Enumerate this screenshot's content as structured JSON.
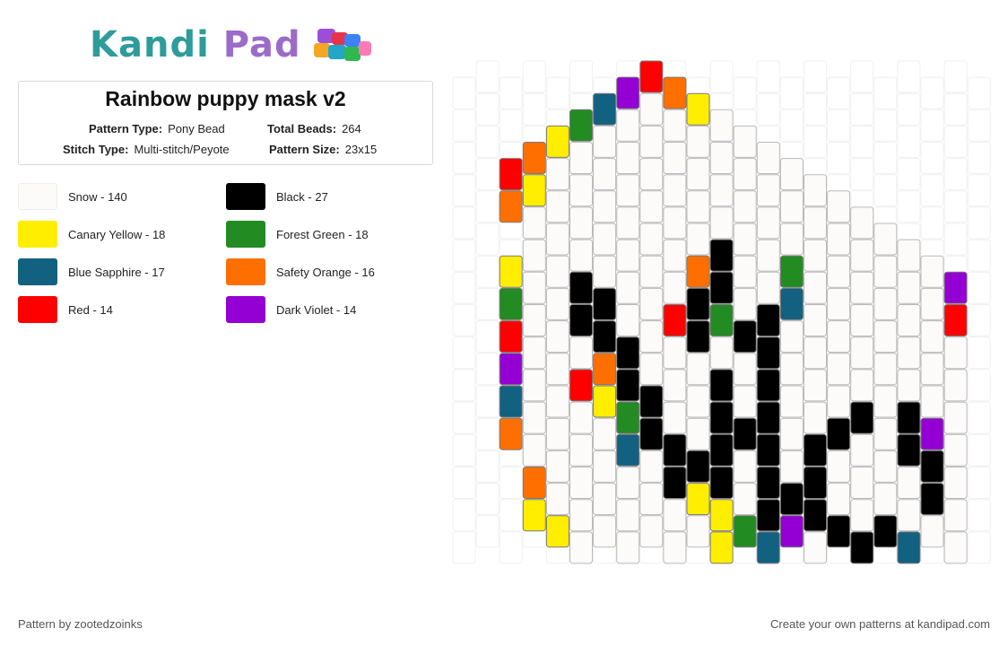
{
  "logo": {
    "part1": "Kandi",
    "part2": "Pad"
  },
  "pattern": {
    "title": "Rainbow puppy mask v2",
    "pattern_type_label": "Pattern Type:",
    "pattern_type": "Pony Bead",
    "total_beads_label": "Total Beads:",
    "total_beads": "264",
    "stitch_type_label": "Stitch Type:",
    "stitch_type": "Multi-stitch/Peyote",
    "pattern_size_label": "Pattern Size:",
    "pattern_size": "23x15"
  },
  "legend": [
    {
      "label": "Snow - 140",
      "color": "#fdfafa",
      "key": "W"
    },
    {
      "label": "Black - 27",
      "color": "#000000",
      "key": "K"
    },
    {
      "label": "Canary Yellow - 18",
      "color": "#ffee00",
      "key": "Y"
    },
    {
      "label": "Forest Green - 18",
      "color": "#228b22",
      "key": "G"
    },
    {
      "label": "Blue Sapphire - 17",
      "color": "#126180",
      "key": "B"
    },
    {
      "label": "Safety Orange - 16",
      "color": "#ff6f00",
      "key": "O"
    },
    {
      "label": "Red - 14",
      "color": "#ff0000",
      "key": "R"
    },
    {
      "label": "Dark Violet - 14",
      "color": "#9400d3",
      "key": "V"
    }
  ],
  "grid": {
    "columns": 23,
    "column_offsets": [
      8,
      7,
      6,
      5,
      4,
      3,
      2,
      1,
      0,
      1,
      2,
      3,
      4,
      5,
      6,
      7,
      8,
      9,
      10,
      11,
      12,
      13,
      14
    ],
    "columns_data": [
      "",
      "",
      "RO YGRVBO",
      "OYWWWWWWWWOY",
      "YWWWWWWWWWWWYG",
      "GWWWWKKWRWWWWWGB",
      "BWWWWWKKOYWWWWWWBV",
      "VWWWWWWWKKGBWWWWWWVR",
      "RWWWWWWWWWKKWWWWWWWWRO",
      "OWWWWWWRWWWKKWWWWWOWWOY",
      "YWWWWOKKWWWKYWWWWWOYRW",
      "WWWWKKGWKKKKYYRWWWWWW",
      "WWWWWWKWWKWWGBBGRRWWWW",
      "WWWWWKKKKKKKBBGYYOOWWWW",
      "WWWGBWWWWWKVBBYGYOWWWW",
      "WWWWWWWWKKKWVBGWWYWWWWW",
      "WWWWWWWKWWKKWBWGYWWW",
      "WWWWWWKWWWKKRWWWWWWBW",
      "WWWWWWWWWKKWWOWGWWWVG",
      "WWWWWKKWWBWWWWWOYRWV",
      "WWWWWVKKWWWWWWWWYOYR",
      "VRWWWWWWWKKWWWWGGYO",
      ""
    ]
  },
  "footer": {
    "left": "Pattern by zootedzoinks",
    "right": "Create your own patterns at kandipad.com"
  }
}
